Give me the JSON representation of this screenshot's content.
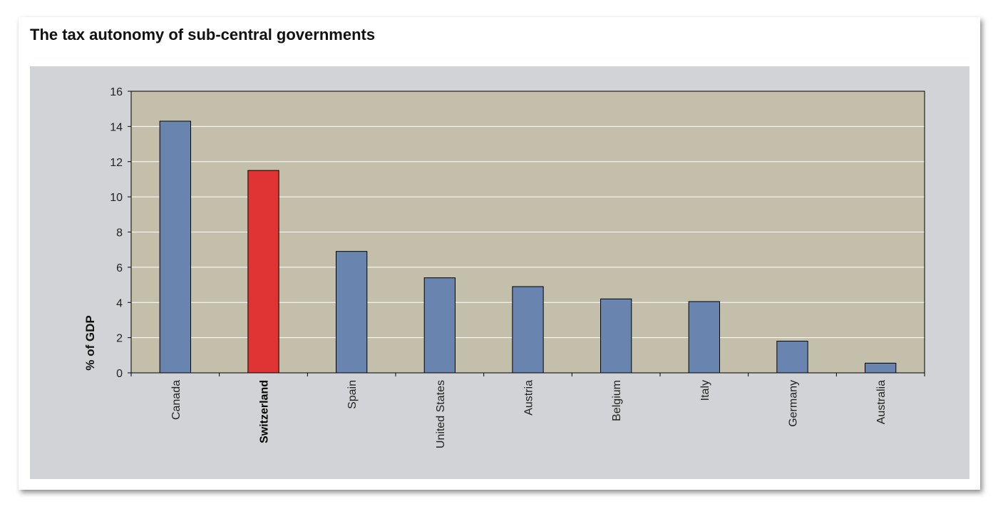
{
  "chart_data": {
    "type": "bar",
    "title": "The tax autonomy of sub-central governments",
    "xlabel": "",
    "ylabel": "% of GDP",
    "ylim": [
      0,
      16
    ],
    "yticks": [
      0,
      2,
      4,
      6,
      8,
      10,
      12,
      14,
      16
    ],
    "categories": [
      "Canada",
      "Switzerland",
      "Spain",
      "United States",
      "Austria",
      "Belgium",
      "Italy",
      "Germany",
      "Australia"
    ],
    "values": [
      14.3,
      11.5,
      6.9,
      5.4,
      4.9,
      4.2,
      4.05,
      1.8,
      0.55
    ],
    "highlight": "Switzerland",
    "grid": true,
    "legend": "none",
    "colors": {
      "bar": "#6a84b0",
      "highlight": "#e03434",
      "plot_bg": "#c4bfaa",
      "panel_bg": "#d1d3d6",
      "gridline": "#ffffff"
    }
  }
}
